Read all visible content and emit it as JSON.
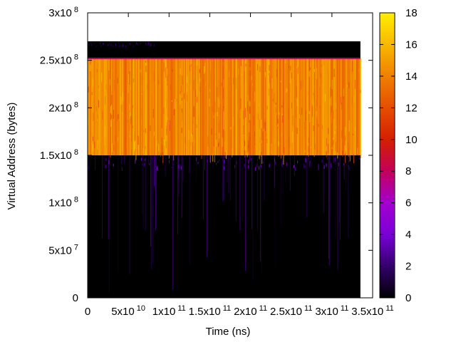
{
  "chart_data": {
    "type": "heatmap",
    "title": "",
    "xlabel": "Time (ns)",
    "ylabel": "Virtual Address (bytes)",
    "xlim": [
      0,
      350000000000
    ],
    "ylim": [
      0,
      300000000
    ],
    "x_ticks": [
      {
        "value": 0,
        "mantissa": "0",
        "exp": ""
      },
      {
        "value": 50000000000,
        "mantissa": "5x10",
        "exp": "10"
      },
      {
        "value": 100000000000,
        "mantissa": "1x10",
        "exp": "11"
      },
      {
        "value": 150000000000,
        "mantissa": "1.5x10",
        "exp": "11"
      },
      {
        "value": 200000000000,
        "mantissa": "2x10",
        "exp": "11"
      },
      {
        "value": 250000000000,
        "mantissa": "2.5x10",
        "exp": "11"
      },
      {
        "value": 300000000000,
        "mantissa": "3x10",
        "exp": "11"
      },
      {
        "value": 350000000000,
        "mantissa": "3.5x10",
        "exp": "11"
      }
    ],
    "y_ticks": [
      {
        "value": 0,
        "mantissa": "0",
        "exp": ""
      },
      {
        "value": 50000000,
        "mantissa": "5x10",
        "exp": "7"
      },
      {
        "value": 100000000,
        "mantissa": "1x10",
        "exp": "8"
      },
      {
        "value": 150000000,
        "mantissa": "1.5x10",
        "exp": "8"
      },
      {
        "value": 200000000,
        "mantissa": "2x10",
        "exp": "8"
      },
      {
        "value": 250000000,
        "mantissa": "2.5x10",
        "exp": "8"
      },
      {
        "value": 300000000,
        "mantissa": "3x10",
        "exp": "8"
      }
    ],
    "colorbar": {
      "range": [
        0,
        18
      ],
      "ticks": [
        0,
        2,
        4,
        6,
        8,
        10,
        12,
        14,
        16,
        18
      ],
      "colormap": [
        "#000000",
        "#33006a",
        "#7a00d6",
        "#a300d0",
        "#c3005a",
        "#d42000",
        "#e54e00",
        "#f08000",
        "#f8b800",
        "#ffee00"
      ]
    },
    "regions": [
      {
        "x": [
          0,
          335000000000
        ],
        "y": [
          0,
          150000000
        ],
        "level": 0,
        "desc": "mostly 0 with sparse low values"
      },
      {
        "x": [
          0,
          335000000000
        ],
        "y": [
          150000000,
          252000000
        ],
        "level": 14,
        "desc": "dense band 12-16"
      },
      {
        "x": [
          0,
          335000000000
        ],
        "y": [
          252000000,
          270000000
        ],
        "level": 0,
        "desc": "0"
      }
    ],
    "grid": false,
    "legend": "colorbar right"
  }
}
